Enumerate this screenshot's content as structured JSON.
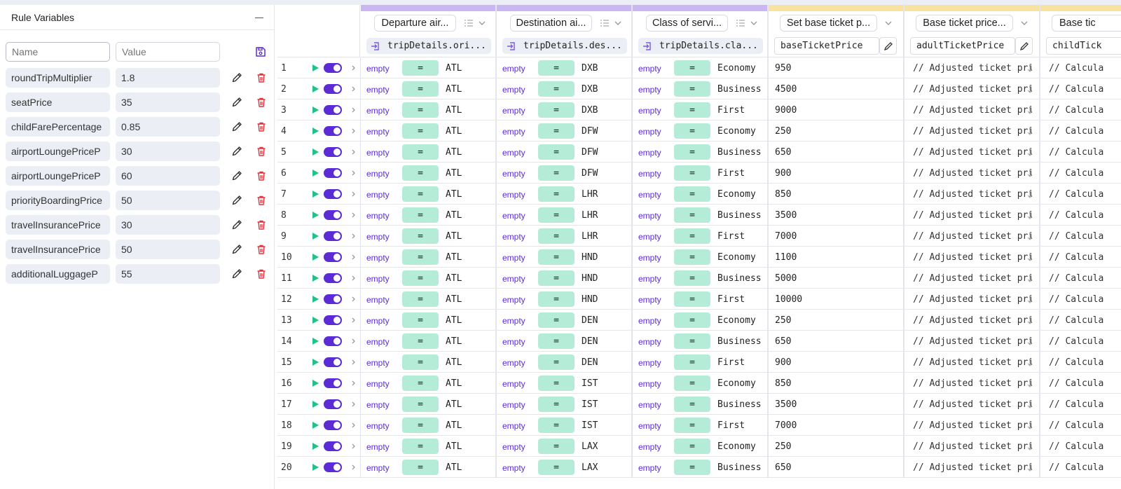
{
  "panel": {
    "title": "Rule Variables",
    "new_name_placeholder": "Name",
    "new_value_placeholder": "Value",
    "variables": [
      {
        "name": "roundTripMultiplier",
        "value": "1.8"
      },
      {
        "name": "seatPrice",
        "value": "35"
      },
      {
        "name": "childFarePercentage",
        "value": "0.85"
      },
      {
        "name": "airportLoungePriceP",
        "value": "30"
      },
      {
        "name": "airportLoungePriceP",
        "value": "60"
      },
      {
        "name": "priorityBoardingPrice",
        "value": "50"
      },
      {
        "name": "travelInsurancePrice",
        "value": "30"
      },
      {
        "name": "travelInsurancePrice",
        "value": "50"
      },
      {
        "name": "additionalLuggageP",
        "value": "55"
      }
    ]
  },
  "columns": {
    "inputs": [
      {
        "label": "Departure air...",
        "path": "tripDetails.ori..."
      },
      {
        "label": "Destination ai...",
        "path": "tripDetails.des..."
      },
      {
        "label": "Class of servi...",
        "path": "tripDetails.cla..."
      }
    ],
    "outputs": [
      {
        "label": "Set base ticket p...",
        "field": "baseTicketPrice"
      },
      {
        "label": "Base ticket price...",
        "field": "adultTicketPrice"
      },
      {
        "label": "Base tic",
        "field": "childTick"
      }
    ]
  },
  "cell_labels": {
    "empty": "empty",
    "operator": "=",
    "adjusted": "// Adjusted ticket price",
    "calculated": "// Calcula"
  },
  "rows": [
    {
      "n": "1",
      "dep": "ATL",
      "dest": "DXB",
      "cls": "Economy",
      "base": "950"
    },
    {
      "n": "2",
      "dep": "ATL",
      "dest": "DXB",
      "cls": "Business",
      "base": "4500"
    },
    {
      "n": "3",
      "dep": "ATL",
      "dest": "DXB",
      "cls": "First",
      "base": "9000"
    },
    {
      "n": "4",
      "dep": "ATL",
      "dest": "DFW",
      "cls": "Economy",
      "base": "250"
    },
    {
      "n": "5",
      "dep": "ATL",
      "dest": "DFW",
      "cls": "Business",
      "base": "650"
    },
    {
      "n": "6",
      "dep": "ATL",
      "dest": "DFW",
      "cls": "First",
      "base": "900"
    },
    {
      "n": "7",
      "dep": "ATL",
      "dest": "LHR",
      "cls": "Economy",
      "base": "850"
    },
    {
      "n": "8",
      "dep": "ATL",
      "dest": "LHR",
      "cls": "Business",
      "base": "3500"
    },
    {
      "n": "9",
      "dep": "ATL",
      "dest": "LHR",
      "cls": "First",
      "base": "7000"
    },
    {
      "n": "10",
      "dep": "ATL",
      "dest": "HND",
      "cls": "Economy",
      "base": "1100"
    },
    {
      "n": "11",
      "dep": "ATL",
      "dest": "HND",
      "cls": "Business",
      "base": "5000"
    },
    {
      "n": "12",
      "dep": "ATL",
      "dest": "HND",
      "cls": "First",
      "base": "10000"
    },
    {
      "n": "13",
      "dep": "ATL",
      "dest": "DEN",
      "cls": "Economy",
      "base": "250"
    },
    {
      "n": "14",
      "dep": "ATL",
      "dest": "DEN",
      "cls": "Business",
      "base": "650"
    },
    {
      "n": "15",
      "dep": "ATL",
      "dest": "DEN",
      "cls": "First",
      "base": "900"
    },
    {
      "n": "16",
      "dep": "ATL",
      "dest": "IST",
      "cls": "Economy",
      "base": "850"
    },
    {
      "n": "17",
      "dep": "ATL",
      "dest": "IST",
      "cls": "Business",
      "base": "3500"
    },
    {
      "n": "18",
      "dep": "ATL",
      "dest": "IST",
      "cls": "First",
      "base": "7000"
    },
    {
      "n": "19",
      "dep": "ATL",
      "dest": "LAX",
      "cls": "Economy",
      "base": "250"
    },
    {
      "n": "20",
      "dep": "ATL",
      "dest": "LAX",
      "cls": "Business",
      "base": "650"
    }
  ],
  "colors": {
    "accent": "#5b2bd6",
    "delete": "#e5323c",
    "play": "#20c28a",
    "operator_bg": "#b5ecd7",
    "input_bar": "#c9b6f2",
    "output_bar": "#f7e2a0"
  }
}
